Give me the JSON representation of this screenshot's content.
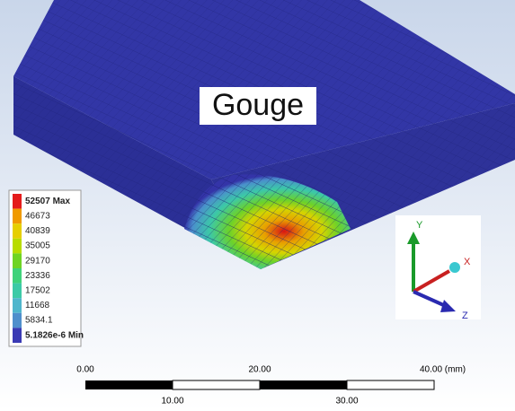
{
  "model": {
    "label": "Gouge"
  },
  "legend": {
    "entries": [
      {
        "label": "52507 Max",
        "color": "#e41b1b"
      },
      {
        "label": "46673",
        "color": "#f09a00"
      },
      {
        "label": "40839",
        "color": "#e6cf00"
      },
      {
        "label": "35005",
        "color": "#b8dc00"
      },
      {
        "label": "29170",
        "color": "#6fd424"
      },
      {
        "label": "23336",
        "color": "#3fd27a"
      },
      {
        "label": "17502",
        "color": "#3ccaa6"
      },
      {
        "label": "11668",
        "color": "#4fb6cc"
      },
      {
        "label": "5834.1",
        "color": "#4f8fcc"
      },
      {
        "label": "5.1826e-6 Min",
        "color": "#3a3ab4"
      }
    ]
  },
  "triad": {
    "y": "Y",
    "x": "X",
    "z": "Z"
  },
  "scale_bar": {
    "top_labels": [
      "0.00",
      "20.00",
      "40.00 (mm)"
    ],
    "bottom_labels": [
      "10.00",
      "30.00"
    ]
  }
}
